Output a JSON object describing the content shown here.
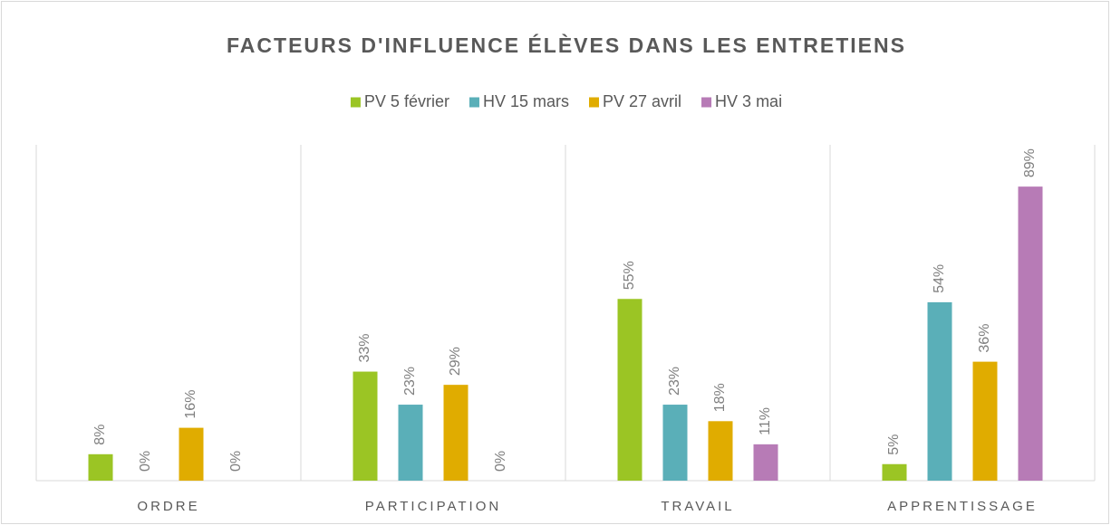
{
  "chart_data": {
    "type": "bar",
    "title": "FACTEURS D'INFLUENCE ÉLÈVES DANS LES ENTRETIENS",
    "categories": [
      "ORDRE",
      "PARTICIPATION",
      "TRAVAIL",
      "APPRENTISSAGE"
    ],
    "series": [
      {
        "name": "PV 5 février",
        "color": "#9bc524",
        "values": [
          8,
          33,
          55,
          5
        ],
        "value_labels": [
          "8%",
          "33%",
          "55%",
          "5%"
        ]
      },
      {
        "name": "HV 15 mars",
        "color": "#5aafb8",
        "values": [
          0,
          23,
          23,
          54
        ],
        "value_labels": [
          "0%",
          "23%",
          "23%",
          "54%"
        ]
      },
      {
        "name": "PV 27 avril",
        "color": "#e0ac00",
        "values": [
          16,
          29,
          18,
          36
        ],
        "value_labels": [
          "16%",
          "29%",
          "18%",
          "36%"
        ]
      },
      {
        "name": "HV 3 mai",
        "color": "#b77bb6",
        "values": [
          0,
          0,
          11,
          89
        ],
        "value_labels": [
          "0%",
          "0%",
          "11%",
          "89%"
        ]
      }
    ],
    "ylim": [
      0,
      100
    ],
    "legend": "top"
  }
}
